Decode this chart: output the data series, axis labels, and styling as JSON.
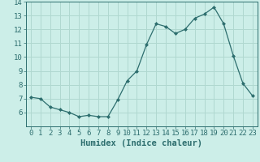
{
  "x": [
    0,
    1,
    2,
    3,
    4,
    5,
    6,
    7,
    8,
    9,
    10,
    11,
    12,
    13,
    14,
    15,
    16,
    17,
    18,
    19,
    20,
    21,
    22,
    23
  ],
  "y": [
    7.1,
    7.0,
    6.4,
    6.2,
    6.0,
    5.7,
    5.8,
    5.7,
    5.7,
    6.9,
    8.3,
    9.0,
    10.9,
    12.4,
    12.2,
    11.7,
    12.0,
    12.8,
    13.1,
    13.6,
    12.4,
    10.1,
    8.1,
    7.2
  ],
  "xlabel": "Humidex (Indice chaleur)",
  "ylim": [
    5.0,
    14.0
  ],
  "xlim": [
    -0.5,
    23.5
  ],
  "yticks": [
    6,
    7,
    8,
    9,
    10,
    11,
    12,
    13,
    14
  ],
  "xticks": [
    0,
    1,
    2,
    3,
    4,
    5,
    6,
    7,
    8,
    9,
    10,
    11,
    12,
    13,
    14,
    15,
    16,
    17,
    18,
    19,
    20,
    21,
    22,
    23
  ],
  "line_color": "#2d6e6e",
  "marker": "D",
  "marker_size": 2.0,
  "bg_color": "#cceee8",
  "grid_color": "#b0d8d0",
  "xlabel_fontsize": 7.5,
  "tick_fontsize": 6.5,
  "linewidth": 0.9
}
